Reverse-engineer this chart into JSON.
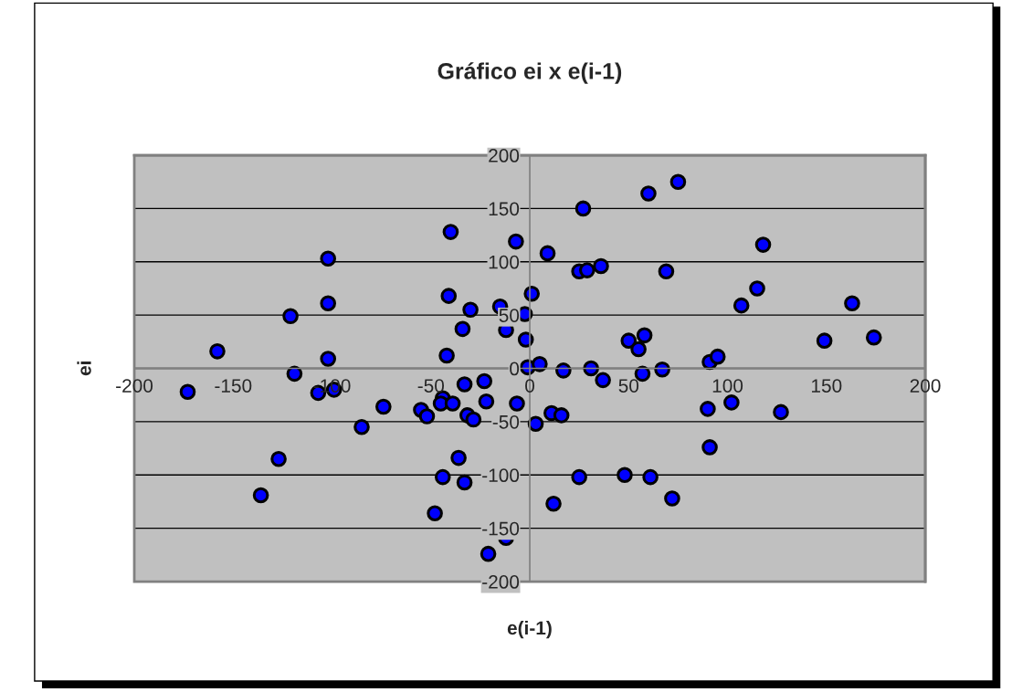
{
  "chart_data": {
    "type": "scatter",
    "title": "Gráfico ei x e(i-1)",
    "xlabel": "e(i-1)",
    "ylabel": "ei",
    "xlim": [
      -200,
      200
    ],
    "ylim": [
      -200,
      200
    ],
    "xticks": [
      -200,
      -150,
      -100,
      -50,
      0,
      50,
      100,
      150,
      200
    ],
    "yticks": [
      -200,
      -150,
      -100,
      -50,
      0,
      50,
      100,
      150,
      200
    ],
    "grid": "y",
    "marker": "circle",
    "legend": false,
    "series": [
      {
        "color": "#0000ff",
        "x": [
          -158,
          -121,
          -102,
          -102,
          -102,
          -119,
          -40,
          -7,
          -41,
          -30,
          -15,
          -2.5,
          1,
          -34,
          -12,
          -2,
          -42,
          -1,
          5,
          27,
          60,
          75,
          9,
          25,
          29,
          36,
          69,
          118,
          115,
          107,
          163,
          174,
          149,
          50,
          58,
          55,
          91,
          95,
          17,
          31,
          57,
          67,
          -173,
          -107,
          -99,
          -74,
          -85,
          -55,
          -52,
          -44,
          -45,
          -39,
          -33,
          -23,
          -22,
          -6.5,
          -31.5,
          -28.5,
          -127,
          -136,
          -36,
          -44,
          -33,
          -48,
          -12,
          -21,
          37,
          3,
          11,
          16,
          90,
          102,
          127,
          91,
          25,
          48,
          61,
          72,
          12
        ],
        "values": [
          16,
          49,
          103,
          61,
          9,
          -5,
          128,
          119,
          68,
          55,
          58,
          51,
          70,
          37,
          36,
          27,
          12,
          1,
          4,
          150,
          164,
          175,
          108,
          91,
          92,
          96,
          91,
          116,
          75,
          59,
          61,
          29,
          26,
          26,
          31,
          18,
          6,
          11,
          -2,
          0,
          -5,
          -1,
          -22,
          -23,
          -20,
          -36,
          -55,
          -39,
          -45,
          -28,
          -33,
          -33,
          -15,
          -12,
          -31,
          -33,
          -44,
          -48,
          -85,
          -119,
          -84,
          -102,
          -107,
          -136,
          -159,
          -174,
          -11,
          -52,
          -42,
          -44,
          -38,
          -32,
          -41,
          -74,
          -102,
          -100,
          -102,
          -122,
          -127
        ]
      }
    ]
  }
}
